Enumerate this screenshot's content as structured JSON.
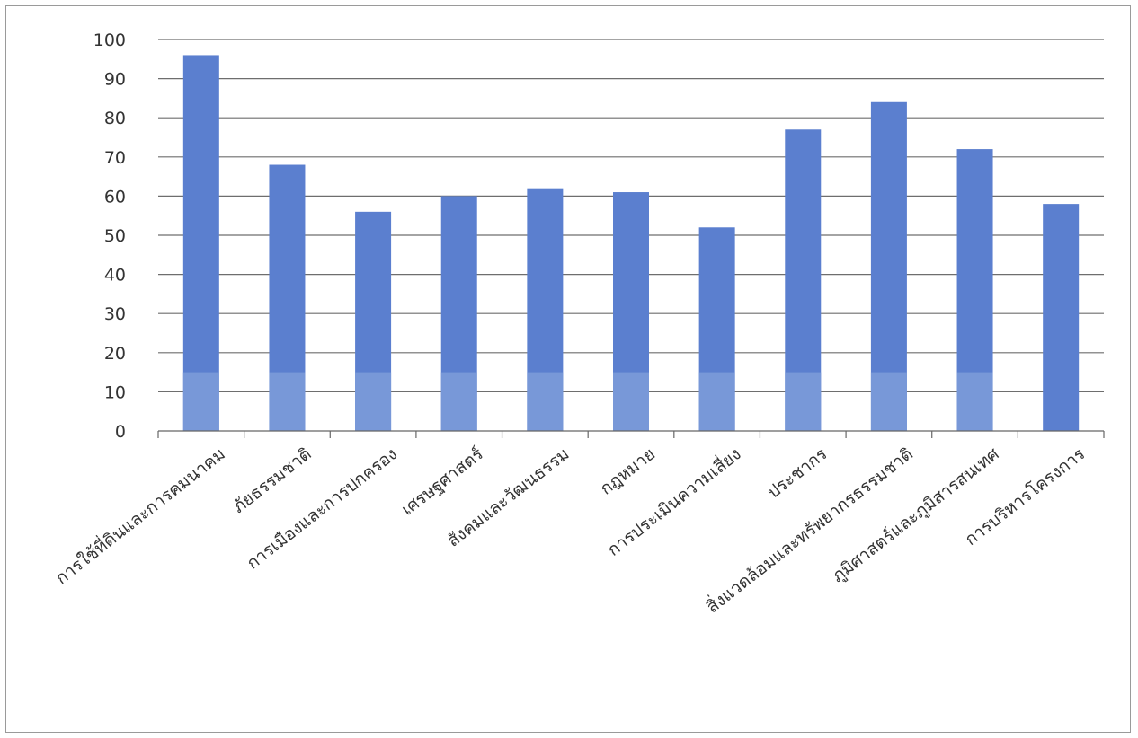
{
  "chart_data": {
    "type": "bar",
    "title": "",
    "xlabel": "",
    "ylabel": "",
    "ylim": [
      0,
      100
    ],
    "yticks": [
      "0",
      "10",
      "20",
      "30",
      "40",
      "50",
      "60",
      "70",
      "80",
      "90",
      "100"
    ],
    "grid": true,
    "categories": [
      "การใช้ที่ดินและการคมนาคม",
      "ภัยธรรมชาติ",
      "การเมืองและการปกครอง",
      "เศรษฐศาสตร์",
      "สังคมและวัฒนธรรม",
      "กฎหมาย",
      "การประเมินความเสี่ยง",
      "ประชากร",
      "สิ่งแวดล้อมและทรัพยากรธรรมชาติ",
      "ภูมิศาสตร์และภูมิสารสนเทศ",
      "การบริหารโครงการ"
    ],
    "series": [
      {
        "values": [
          96,
          68,
          56,
          60,
          62,
          61,
          52,
          77,
          84,
          72,
          58
        ]
      }
    ],
    "colors": {
      "bar": "#5b7fcf",
      "bar_light": "#7898d8",
      "grid": "#6e6e6e",
      "axis": "#666666"
    }
  }
}
